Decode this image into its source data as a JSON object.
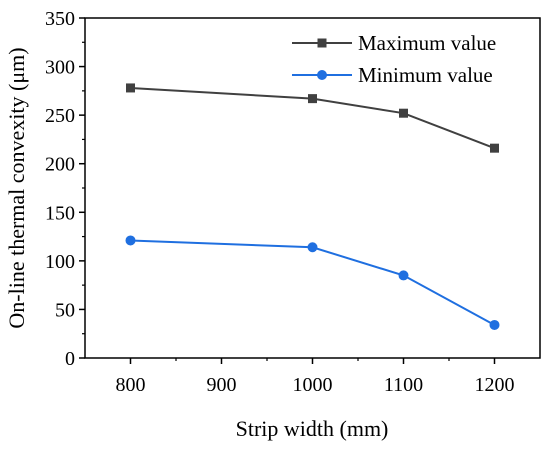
{
  "chart_data": {
    "type": "line",
    "title": "",
    "xlabel": "Strip width (mm)",
    "ylabel": "On-line thermal convexity (μm)",
    "xlim": [
      750,
      1250
    ],
    "ylim": [
      0,
      350
    ],
    "xticks": [
      800,
      900,
      1000,
      1100,
      1200
    ],
    "yticks": [
      0,
      50,
      100,
      150,
      200,
      250,
      300,
      350
    ],
    "grid": false,
    "legend_position": "top-right",
    "series": [
      {
        "name": "Maximum value",
        "color": "#404040",
        "marker": "square",
        "x": [
          800,
          1000,
          1100,
          1200
        ],
        "y": [
          278,
          267,
          252,
          216
        ]
      },
      {
        "name": "Minimum value",
        "color": "#1f6fe0",
        "marker": "circle",
        "x": [
          800,
          1000,
          1100,
          1200
        ],
        "y": [
          121,
          114,
          85,
          34
        ]
      }
    ]
  }
}
